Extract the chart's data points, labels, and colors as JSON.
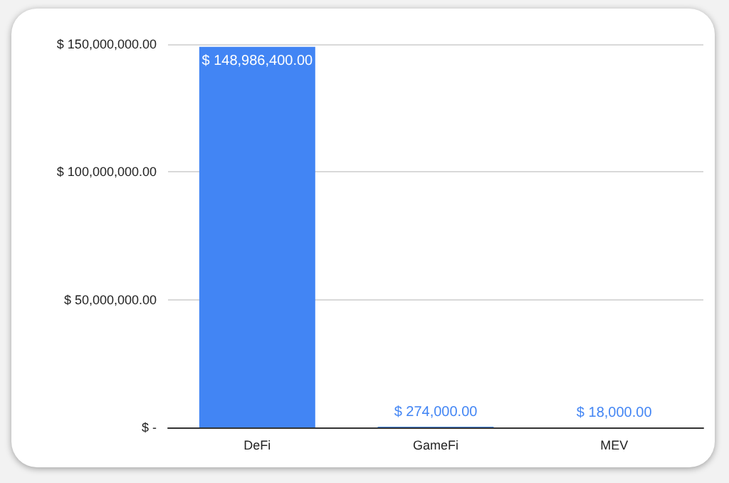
{
  "chart_data": {
    "type": "bar",
    "categories": [
      "DeFi",
      "GameFi",
      "MEV"
    ],
    "values": [
      148986400,
      274000,
      18000
    ],
    "color": "#4285f4",
    "value_labels": [
      "$ 148,986,400.00",
      "$ 274,000.00",
      "$ 18,000.00"
    ],
    "ylim": [
      0,
      150000000
    ],
    "yticks": [
      {
        "value": 0,
        "label": "$ -"
      },
      {
        "value": 50000000,
        "label": "$ 50,000,000.00"
      },
      {
        "value": 100000000,
        "label": "$ 100,000,000.00"
      },
      {
        "value": 150000000,
        "label": "$ 150,000,000.00"
      }
    ],
    "grid": "y"
  }
}
